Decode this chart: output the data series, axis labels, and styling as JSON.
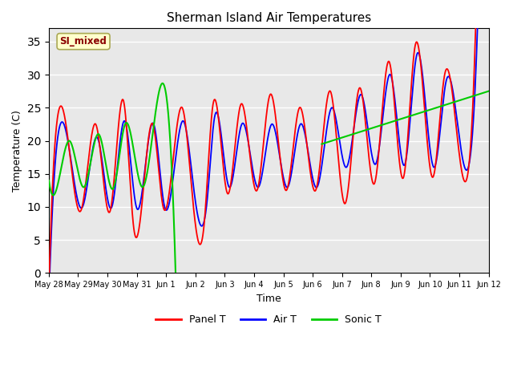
{
  "title": "Sherman Island Air Temperatures",
  "xlabel": "Time",
  "ylabel": "Temperature (C)",
  "ylim": [
    0,
    37
  ],
  "yticks": [
    0,
    5,
    10,
    15,
    20,
    25,
    30,
    35
  ],
  "plot_bg_color": "#e8e8e8",
  "annotation_text": "SI_mixed",
  "annotation_color": "#8b0000",
  "annotation_bg": "#ffffcc",
  "line_panel_color": "#ff0000",
  "line_air_color": "#0000ff",
  "line_sonic_color": "#00cc00",
  "legend_labels": [
    "Panel T",
    "Air T",
    "Sonic T"
  ],
  "tick_labels": [
    "May 28",
    "May 29",
    "May 30",
    "May 31",
    "Jun 1",
    "Jun 2",
    "Jun 3",
    "Jun 4",
    "Jun 5",
    "Jun 6",
    "Jun 7",
    "Jun 8",
    "Jun 9",
    "Jun 10",
    "Jun 11",
    "Jun 12"
  ]
}
